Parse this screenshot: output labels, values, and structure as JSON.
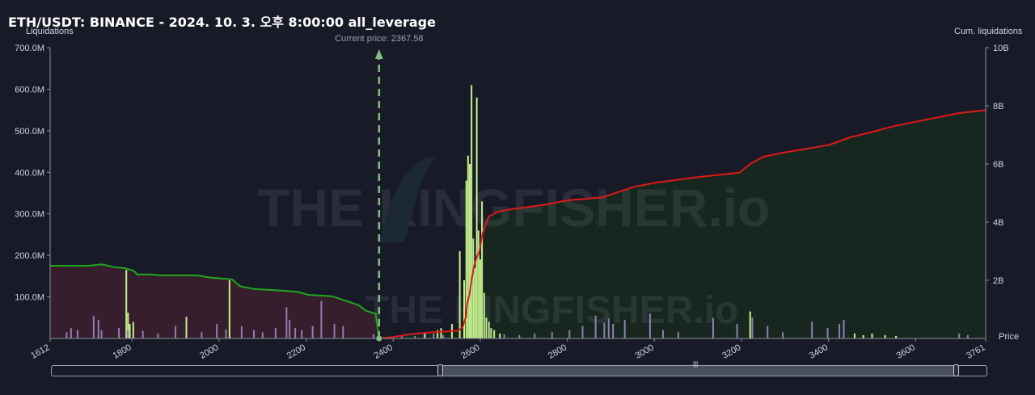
{
  "header": {
    "title": "ETH/USDT: BINANCE - 2024. 10. 3. 오후 8:00:00 all_leverage",
    "left_axis_title": "Liquidations",
    "right_axis_title": "Cum. liquidations",
    "price_label": "Price",
    "current_price_label": "Current price: 2367.58",
    "watermark": "THE KINGFISHER.io"
  },
  "chart_data": {
    "type": "bar",
    "title": "ETH/USDT: BINANCE - 2024. 10. 3. 오후 8:00:00 all_leverage",
    "xlabel": "Price",
    "ylabel": "Liquidations",
    "y2label": "Cum. liquidations",
    "xlim": [
      1612,
      3761
    ],
    "ylim": [
      0,
      700000000
    ],
    "y2lim": [
      0,
      10000000000
    ],
    "x_ticks": [
      "1612",
      "1800",
      "2000",
      "2200",
      "2400",
      "2600",
      "2800",
      "3000",
      "3200",
      "3400",
      "3600",
      "3761"
    ],
    "y_ticks": [
      "700.0M",
      "600.0M",
      "500.0M",
      "400.0M",
      "300.0M",
      "200.0M",
      "100.0M"
    ],
    "y2_ticks": [
      "10B",
      "8B",
      "6B",
      "4B",
      "2B"
    ],
    "current_price": 2367.58,
    "legend": "none",
    "grid": false,
    "colors": {
      "short_bars": "#8f7fb3",
      "long_bars": "#c4f08e",
      "cum_short_line": "#1ea81e",
      "cum_long_line": "#e01818",
      "cum_short_fill": "#3a1f2e",
      "cum_long_fill": "#17291f",
      "current_price_line": "#7fbf7f"
    },
    "series": [
      {
        "kind": "bars",
        "color": "#c4f08e",
        "points": [
          [
            1787,
            165000000
          ],
          [
            1791,
            62000000
          ],
          [
            1795,
            35000000
          ],
          [
            1803,
            40000000
          ],
          [
            1925,
            52000000
          ],
          [
            2024,
            140000000
          ],
          [
            2472,
            15000000
          ],
          [
            2502,
            20000000
          ],
          [
            2510,
            25000000
          ],
          [
            2535,
            35000000
          ],
          [
            2553,
            210000000
          ],
          [
            2563,
            140000000
          ],
          [
            2568,
            380000000
          ],
          [
            2572,
            440000000
          ],
          [
            2576,
            420000000
          ],
          [
            2580,
            610000000
          ],
          [
            2584,
            240000000
          ],
          [
            2588,
            170000000
          ],
          [
            2592,
            580000000
          ],
          [
            2596,
            260000000
          ],
          [
            2600,
            190000000
          ],
          [
            2604,
            330000000
          ],
          [
            2609,
            110000000
          ],
          [
            2614,
            50000000
          ],
          [
            2620,
            40000000
          ],
          [
            2625,
            25000000
          ],
          [
            2632,
            20000000
          ],
          [
            2645,
            12000000
          ],
          [
            3220,
            65000000
          ],
          [
            3460,
            12000000
          ],
          [
            3480,
            8000000
          ],
          [
            3500,
            12000000
          ],
          [
            3530,
            8000000
          ],
          [
            3555,
            6000000
          ]
        ]
      },
      {
        "kind": "bars",
        "color": "#8f7fb3",
        "points": [
          [
            1650,
            15000000
          ],
          [
            1660,
            25000000
          ],
          [
            1675,
            20000000
          ],
          [
            1712,
            55000000
          ],
          [
            1723,
            45000000
          ],
          [
            1730,
            20000000
          ],
          [
            1770,
            25000000
          ],
          [
            1790,
            20000000
          ],
          [
            1825,
            18000000
          ],
          [
            1860,
            12000000
          ],
          [
            1900,
            30000000
          ],
          [
            1960,
            15000000
          ],
          [
            1995,
            35000000
          ],
          [
            2016,
            22000000
          ],
          [
            2052,
            30000000
          ],
          [
            2080,
            20000000
          ],
          [
            2100,
            15000000
          ],
          [
            2130,
            25000000
          ],
          [
            2155,
            75000000
          ],
          [
            2162,
            45000000
          ],
          [
            2175,
            25000000
          ],
          [
            2190,
            20000000
          ],
          [
            2215,
            30000000
          ],
          [
            2235,
            90000000
          ],
          [
            2265,
            35000000
          ],
          [
            2285,
            30000000
          ],
          [
            2355,
            10000000
          ],
          [
            2420,
            8000000
          ],
          [
            2450,
            6000000
          ],
          [
            2474,
            15000000
          ],
          [
            2493,
            12000000
          ],
          [
            2515,
            8000000
          ],
          [
            2655,
            10000000
          ],
          [
            2690,
            8000000
          ],
          [
            2725,
            12000000
          ],
          [
            2765,
            15000000
          ],
          [
            2805,
            20000000
          ],
          [
            2835,
            30000000
          ],
          [
            2865,
            55000000
          ],
          [
            2885,
            38000000
          ],
          [
            2895,
            48000000
          ],
          [
            2905,
            35000000
          ],
          [
            2932,
            45000000
          ],
          [
            2990,
            60000000
          ],
          [
            3020,
            20000000
          ],
          [
            3055,
            15000000
          ],
          [
            3135,
            50000000
          ],
          [
            3190,
            35000000
          ],
          [
            3225,
            50000000
          ],
          [
            3260,
            30000000
          ],
          [
            3295,
            15000000
          ],
          [
            3362,
            40000000
          ],
          [
            3398,
            25000000
          ],
          [
            3425,
            35000000
          ],
          [
            3435,
            45000000
          ],
          [
            3700,
            12000000
          ],
          [
            3720,
            8000000
          ]
        ]
      },
      {
        "kind": "cum_line",
        "color": "#1ea81e",
        "points": [
          [
            1612,
            2500000000
          ],
          [
            1700,
            2500000000
          ],
          [
            1730,
            2550000000
          ],
          [
            1760,
            2450000000
          ],
          [
            1782,
            2420000000
          ],
          [
            1800,
            2350000000
          ],
          [
            1806,
            2300000000
          ],
          [
            1812,
            2200000000
          ],
          [
            1840,
            2200000000
          ],
          [
            1870,
            2170000000
          ],
          [
            1950,
            2170000000
          ],
          [
            1976,
            2100000000
          ],
          [
            2030,
            2030000000
          ],
          [
            2048,
            1800000000
          ],
          [
            2080,
            1700000000
          ],
          [
            2140,
            1650000000
          ],
          [
            2182,
            1600000000
          ],
          [
            2205,
            1500000000
          ],
          [
            2260,
            1450000000
          ],
          [
            2290,
            1300000000
          ],
          [
            2320,
            1150000000
          ],
          [
            2338,
            950000000
          ],
          [
            2360,
            850000000
          ],
          [
            2367.58,
            0
          ]
        ]
      },
      {
        "kind": "cum_line",
        "color": "#e01818",
        "points": [
          [
            2367.58,
            0
          ],
          [
            2400,
            50000000
          ],
          [
            2440,
            150000000
          ],
          [
            2480,
            200000000
          ],
          [
            2530,
            250000000
          ],
          [
            2550,
            270000000
          ],
          [
            2560,
            400000000
          ],
          [
            2567,
            750000000
          ],
          [
            2570,
            1200000000
          ],
          [
            2575,
            1500000000
          ],
          [
            2580,
            2000000000
          ],
          [
            2586,
            2500000000
          ],
          [
            2592,
            2800000000
          ],
          [
            2598,
            3000000000
          ],
          [
            2605,
            3600000000
          ],
          [
            2612,
            3900000000
          ],
          [
            2620,
            4200000000
          ],
          [
            2640,
            4350000000
          ],
          [
            2665,
            4430000000
          ],
          [
            2700,
            4500000000
          ],
          [
            2750,
            4600000000
          ],
          [
            2800,
            4750000000
          ],
          [
            2880,
            4850000000
          ],
          [
            2950,
            5200000000
          ],
          [
            3000,
            5350000000
          ],
          [
            3100,
            5550000000
          ],
          [
            3195,
            5700000000
          ],
          [
            3220,
            6000000000
          ],
          [
            3250,
            6250000000
          ],
          [
            3300,
            6400000000
          ],
          [
            3400,
            6650000000
          ],
          [
            3450,
            6920000000
          ],
          [
            3500,
            7100000000
          ],
          [
            3550,
            7300000000
          ],
          [
            3600,
            7450000000
          ],
          [
            3650,
            7600000000
          ],
          [
            3700,
            7750000000
          ],
          [
            3761,
            7850000000
          ]
        ]
      }
    ]
  }
}
